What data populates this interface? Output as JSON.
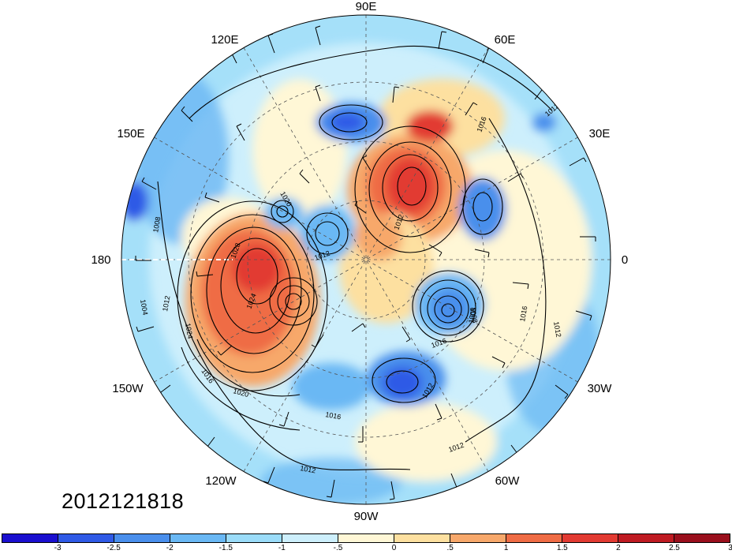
{
  "timestamp": "2012121818",
  "longitude_labels": {
    "deg90E": "90E",
    "deg60E": "60E",
    "deg120E": "120E",
    "deg30E": "30E",
    "deg150E": "150E",
    "deg180": "180",
    "deg0": "0",
    "deg150W": "150W",
    "deg30W": "30W",
    "deg120W": "120W",
    "deg60W": "60W",
    "deg90W": "90W"
  },
  "contour_labels": [
    "1012",
    "1016",
    "1008",
    "1024",
    "1020",
    "1028",
    "1012",
    "1016",
    "1008",
    "1004",
    "1012",
    "1024",
    "1020",
    "1016",
    "1012",
    "1016",
    "1012",
    "1008",
    "1012",
    "1016",
    "1012",
    "1012"
  ],
  "colorbar": {
    "colors": [
      "#1a0fcf",
      "#2f5ae6",
      "#4a8fec",
      "#6ab8f4",
      "#9bdcf9",
      "#cdeffc",
      "#fff7d6",
      "#fde0a0",
      "#f7a86b",
      "#ef6c45",
      "#e23a32",
      "#bf1b22",
      "#9a0f1c"
    ],
    "tick_labels": [
      "-3",
      "-2.5",
      "-2",
      "-1.5",
      "-1",
      "-.5",
      "0",
      ".5",
      "1",
      "1.5",
      "2",
      "2.5",
      "3"
    ]
  },
  "colors": {
    "background": "#ffffff",
    "ocean_base": "#cdeffc",
    "contour_line": "#000000",
    "grid_line": "#555555"
  }
}
